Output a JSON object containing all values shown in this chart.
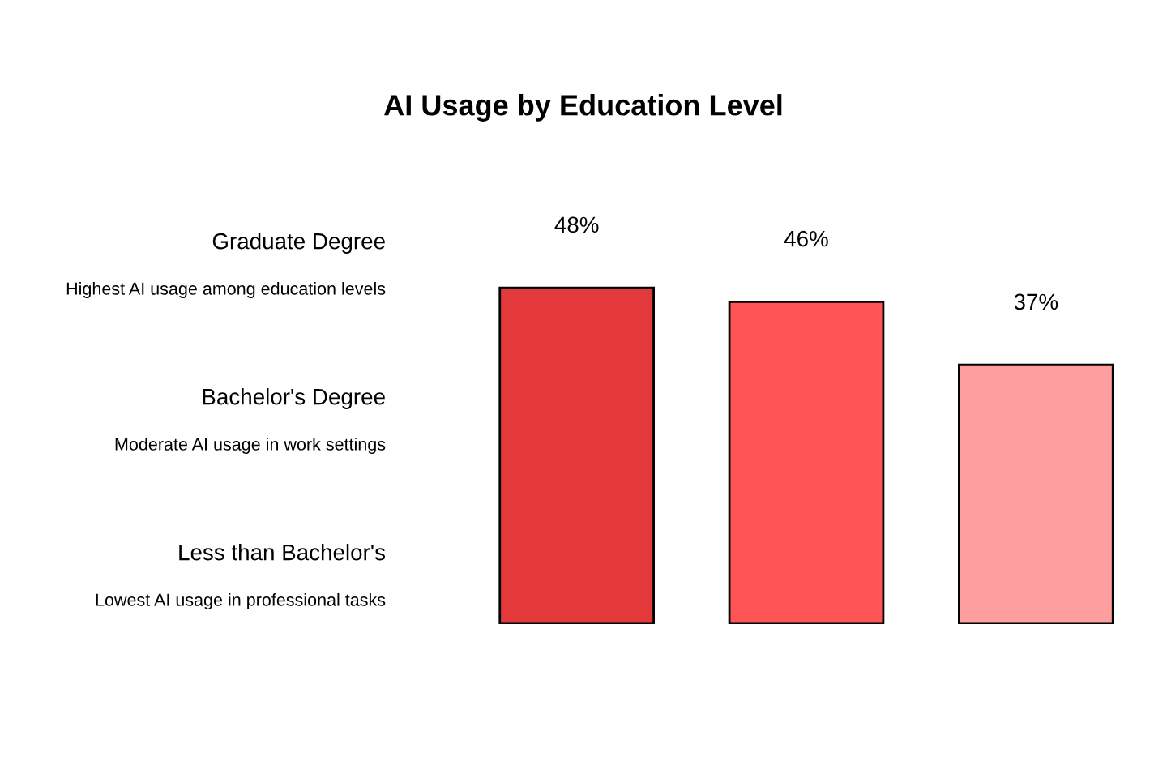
{
  "chart_data": {
    "type": "bar",
    "title": "AI Usage by Education Level",
    "categories": [
      null,
      null,
      null
    ],
    "values": [
      48,
      46,
      37
    ],
    "colors": [
      "#e3393a",
      "#ff5555",
      "#ff9e9e"
    ],
    "value_labels": [
      "48%",
      "46%",
      "37%"
    ],
    "annotations": [
      "Graduate Degree",
      "Highest AI usage among education levels",
      "Bachelor's Degree",
      "Moderate AI usage in work settings",
      "Less than Bachelor's",
      "Lowest AI usage in professional tasks"
    ]
  }
}
